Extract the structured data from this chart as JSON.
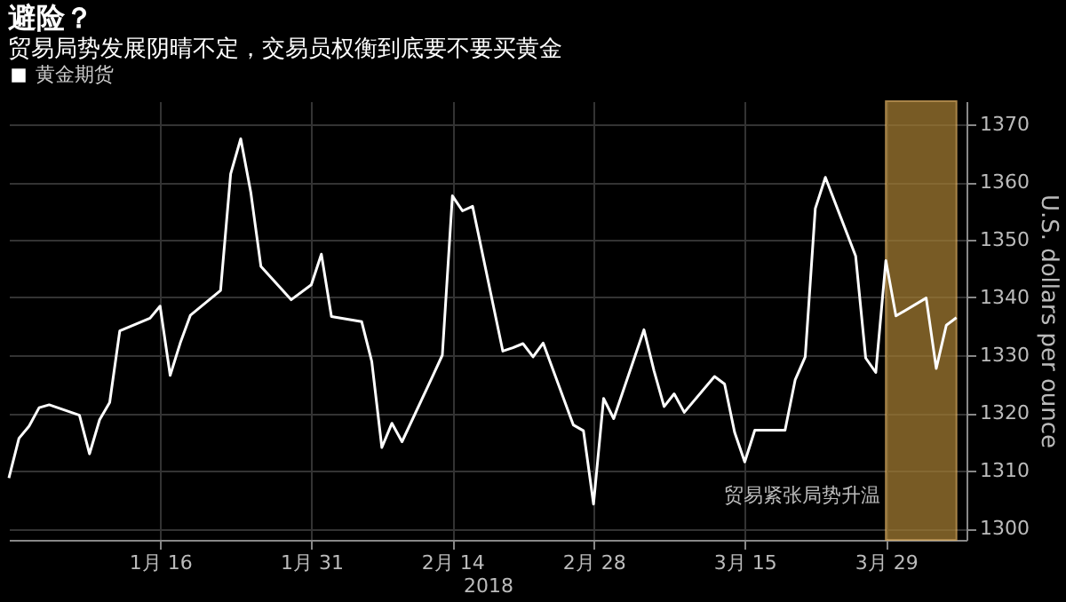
{
  "chart_data": {
    "type": "line",
    "title": "避险？",
    "subtitle": "贸易局势发展阴晴不定，交易员权衡到底要不要买黄金",
    "xlabel": "2018",
    "ylabel": "U.S. dollars per ounce",
    "x": [
      "2018-01-01",
      "2018-01-02",
      "2018-01-03",
      "2018-01-04",
      "2018-01-05",
      "2018-01-08",
      "2018-01-09",
      "2018-01-10",
      "2018-01-11",
      "2018-01-12",
      "2018-01-15",
      "2018-01-16",
      "2018-01-17",
      "2018-01-18",
      "2018-01-19",
      "2018-01-22",
      "2018-01-23",
      "2018-01-24",
      "2018-01-25",
      "2018-01-26",
      "2018-01-29",
      "2018-01-31",
      "2018-02-01",
      "2018-02-02",
      "2018-02-05",
      "2018-02-06",
      "2018-02-07",
      "2018-02-08",
      "2018-02-09",
      "2018-02-12",
      "2018-02-13",
      "2018-02-14",
      "2018-02-15",
      "2018-02-16",
      "2018-02-19",
      "2018-02-20",
      "2018-02-21",
      "2018-02-22",
      "2018-02-23",
      "2018-02-26",
      "2018-02-27",
      "2018-02-28",
      "2018-03-01",
      "2018-03-02",
      "2018-03-05",
      "2018-03-06",
      "2018-03-07",
      "2018-03-08",
      "2018-03-09",
      "2018-03-12",
      "2018-03-13",
      "2018-03-14",
      "2018-03-15",
      "2018-03-16",
      "2018-03-19",
      "2018-03-20",
      "2018-03-21",
      "2018-03-22",
      "2018-03-23",
      "2018-03-26",
      "2018-03-27",
      "2018-03-28",
      "2018-03-29",
      "2018-03-30",
      "2018-04-02",
      "2018-04-03",
      "2018-04-04",
      "2018-04-05"
    ],
    "series": [
      {
        "name": "黄金期货",
        "color": "#ffffff",
        "values": [
          1308.7,
          1315.6,
          1317.7,
          1320.9,
          1321.4,
          1319.6,
          1312.9,
          1318.8,
          1321.8,
          1334.2,
          1336.4,
          1338.5,
          1326.5,
          1332.1,
          1336.9,
          1341.2,
          1361.4,
          1367.5,
          1358.2,
          1345.4,
          1339.6,
          1342.2,
          1347.5,
          1336.7,
          1335.8,
          1328.9,
          1314.0,
          1318.2,
          1315.0,
          1326.2,
          1330.0,
          1357.6,
          1355.0,
          1355.8,
          1330.7,
          1331.3,
          1332.0,
          1329.7,
          1332.1,
          1317.9,
          1316.9,
          1304.2,
          1322.5,
          1319.0,
          1334.4,
          1327.3,
          1321.1,
          1323.3,
          1320.1,
          1326.3,
          1325.0,
          1316.6,
          1311.5,
          1317.0,
          1317.0,
          1325.7,
          1329.7,
          1355.4,
          1360.8,
          1347.2,
          1329.5,
          1327.0,
          1346.4,
          1336.8,
          1339.9,
          1327.7,
          1335.2,
          1336.5
        ]
      }
    ],
    "xlim": [
      "2018-01-01",
      "2018-04-06"
    ],
    "xticks": [
      {
        "value": "2018-01-16",
        "label": "1月 16"
      },
      {
        "value": "2018-01-31",
        "label": "1月 31"
      },
      {
        "value": "2018-02-14",
        "label": "2月 14"
      },
      {
        "value": "2018-02-28",
        "label": "2月 28"
      },
      {
        "value": "2018-03-15",
        "label": "3月 15"
      },
      {
        "value": "2018-03-29",
        "label": "3月 29"
      }
    ],
    "ylim": [
      1298,
      1374
    ],
    "yticks": [
      1300,
      1310,
      1320,
      1330,
      1340,
      1350,
      1360,
      1370
    ],
    "bands": [
      {
        "axis": "x",
        "from": "2018-03-29",
        "to": "2018-04-05",
        "label": "贸易紧张局势升温",
        "color": "#a07a32"
      }
    ],
    "grid": true,
    "legend": "top left",
    "marker": "none",
    "line_style": "solid"
  }
}
